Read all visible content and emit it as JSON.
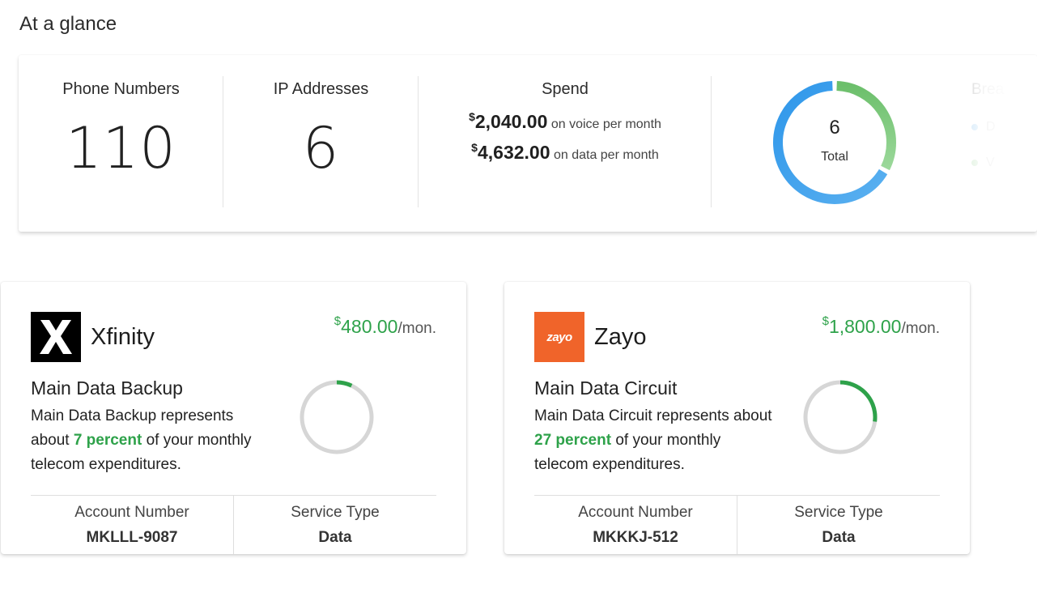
{
  "page": {
    "title": "At a glance"
  },
  "glance": {
    "phone_numbers": {
      "label": "Phone Numbers",
      "value": "110"
    },
    "ip_addresses": {
      "label": "IP Addresses",
      "value": "6"
    },
    "spend": {
      "label": "Spend",
      "currency_symbol": "$",
      "voice_amount": "2,040.00",
      "voice_desc": "on voice per month",
      "data_amount": "4,632.00",
      "data_desc": "on data per month"
    },
    "donut": {
      "total_value": "6",
      "total_label": "Total",
      "segments": [
        {
          "name": "green",
          "fraction": 0.33,
          "color": "#7fc87e"
        },
        {
          "name": "blue",
          "fraction": 0.67,
          "color": "#2f97ea"
        }
      ]
    },
    "breakdown": {
      "title": "Brea",
      "items": [
        {
          "label": "D",
          "color": "#2f97ea"
        },
        {
          "label": "V",
          "color": "#7fc87e"
        }
      ]
    }
  },
  "cards": [
    {
      "provider": "Xfinity",
      "logo_text": "X",
      "currency_symbol": "$",
      "price": "480.00",
      "price_unit": "/mon.",
      "service_title": "Main Data Backup",
      "desc_prefix": "Main Data Backup represents about ",
      "percent_text": "7 percent",
      "desc_suffix": " of your monthly telecom expenditures.",
      "percent_value": 0.07,
      "account_label": "Account Number",
      "account_value": "MKLLL-9087",
      "service_type_label": "Service Type",
      "service_type_value": "Data"
    },
    {
      "provider": "Zayo",
      "logo_text": "zayo",
      "currency_symbol": "$",
      "price": "1,800.00",
      "price_unit": "/mon.",
      "service_title": "Main Data Circuit",
      "desc_prefix": "Main Data Circuit represents about ",
      "percent_text": "27 percent",
      "desc_suffix": " of your monthly telecom expenditures.",
      "percent_value": 0.27,
      "account_label": "Account Number",
      "account_value": "MKKKJ-512",
      "service_type_label": "Service Type",
      "service_type_value": "Data"
    }
  ],
  "colors": {
    "accent_green": "#2ea24a",
    "ring_track": "#d6d6d6",
    "xfinity_logo_bg": "#000000",
    "zayo_logo_bg": "#f0642a"
  }
}
